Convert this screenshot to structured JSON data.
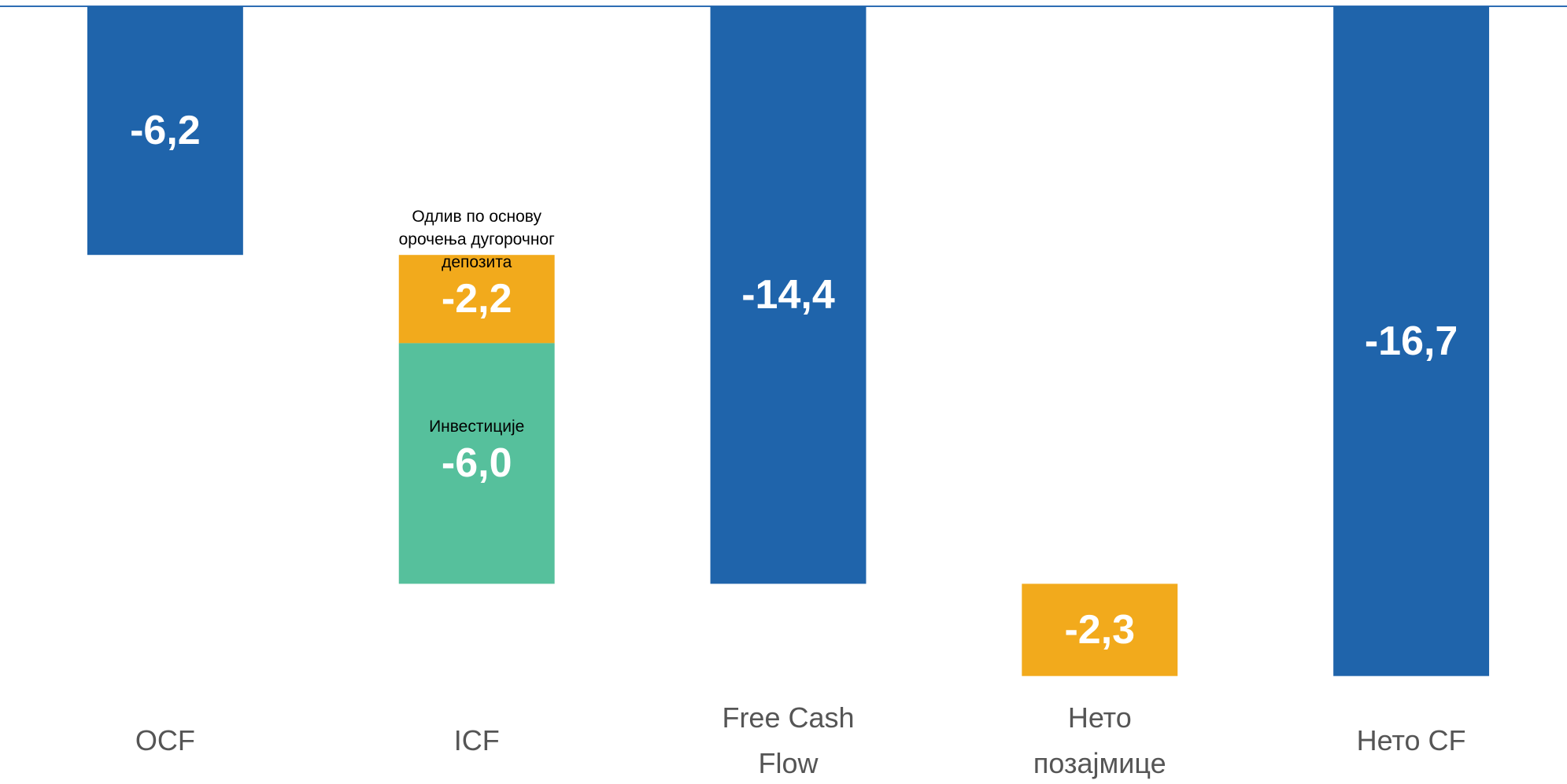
{
  "chart_data": {
    "type": "waterfall",
    "categories": [
      "OCF",
      "ICF",
      "Free Cash Flow",
      "Нето позајмице",
      "Нето CF"
    ],
    "bars": [
      {
        "total": false,
        "values": [
          -6.2
        ],
        "value_labels": [
          "-6,2"
        ],
        "colors": [
          "#1f64ab"
        ]
      },
      {
        "total": false,
        "segment_names": [
          "Одлив по основу орочења дугорочног депозита",
          "Инвестиције"
        ],
        "values": [
          -2.2,
          -6.0
        ],
        "value_labels": [
          "-2,2",
          "-6,0"
        ],
        "colors": [
          "#f2aa1c",
          "#56c09c"
        ]
      },
      {
        "total": true,
        "values": [
          -14.4
        ],
        "value_labels": [
          "-14,4"
        ],
        "colors": [
          "#1f64ab"
        ]
      },
      {
        "total": false,
        "values": [
          -2.3
        ],
        "value_labels": [
          "-2,3"
        ],
        "colors": [
          "#f2aa1c"
        ]
      },
      {
        "total": true,
        "values": [
          -16.7
        ],
        "value_labels": [
          "-16,7"
        ],
        "colors": [
          "#1f64ab"
        ]
      }
    ],
    "ylim": [
      -19,
      0
    ],
    "axis_color": "#2e6db4"
  }
}
